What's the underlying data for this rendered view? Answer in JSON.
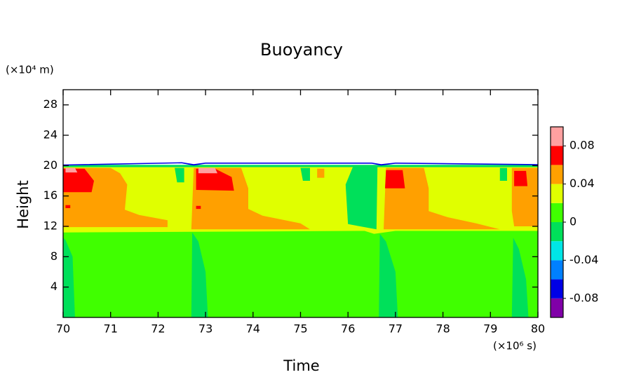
{
  "chart_data": {
    "type": "contour",
    "title": "Buoyancy",
    "x_label": "Time",
    "y_label": "Height",
    "x_unit": "(×10⁶ s)",
    "y_unit": "(×10⁴ m)",
    "xlim": [
      70,
      80
    ],
    "ylim": [
      0,
      30
    ],
    "xticks": [
      70,
      71,
      72,
      73,
      74,
      75,
      76,
      77,
      78,
      79,
      80
    ],
    "yticks": [
      4,
      8,
      12,
      16,
      20,
      24,
      28
    ],
    "levels": [
      -0.1,
      -0.08,
      -0.06,
      -0.04,
      -0.02,
      0,
      0.02,
      0.04,
      0.06,
      0.08,
      0.1
    ],
    "colors": [
      "#8000a8",
      "#0000e6",
      "#0080ff",
      "#00e6e6",
      "#00e05a",
      "#40ff00",
      "#e0ff00",
      "#ffa000",
      "#ff0000",
      "#ffa0a0"
    ],
    "cticks": [
      -0.08,
      -0.04,
      0,
      0.04,
      0.08
    ],
    "regions": [
      {
        "level": 0,
        "x": [
          70,
          80,
          80,
          70
        ],
        "y": [
          0,
          0,
          20,
          20
        ]
      },
      {
        "level": -0.02,
        "x": [
          70,
          70.25,
          70.2,
          70.05,
          70
        ],
        "y": [
          0,
          0,
          8,
          10.2,
          10.5
        ]
      },
      {
        "level": -0.02,
        "x": [
          72.7,
          73.05,
          73.0,
          72.85,
          72.72
        ],
        "y": [
          0,
          0,
          6,
          10,
          11.2
        ]
      },
      {
        "level": -0.02,
        "x": [
          76.65,
          77.05,
          77.0,
          76.8,
          76.67
        ],
        "y": [
          0,
          0,
          6,
          10,
          11.0
        ]
      },
      {
        "level": -0.02,
        "x": [
          79.45,
          79.8,
          79.75,
          79.6,
          79.48
        ],
        "y": [
          0,
          0,
          5,
          9,
          10.5
        ]
      },
      {
        "level": -0.02,
        "x": [
          70,
          80,
          80,
          70
        ],
        "y": [
          19.6,
          19.6,
          20.1,
          20.1
        ]
      },
      {
        "level": -0.08,
        "x": [
          70,
          72.5,
          72.75,
          73.0,
          76.5,
          76.7,
          77.0,
          80,
          80,
          77.0,
          76.7,
          76.5,
          73.0,
          72.75,
          72.5,
          70
        ],
        "y": [
          20.0,
          20.3,
          20.0,
          20.25,
          20.25,
          20.0,
          20.25,
          20.05,
          20.2,
          20.4,
          20.2,
          20.4,
          20.4,
          20.2,
          20.45,
          20.15
        ]
      },
      {
        "level": 0.02,
        "x": [
          70,
          76.35,
          76.55,
          77.0,
          80,
          80,
          70
        ],
        "y": [
          11.2,
          11.4,
          11.0,
          11.4,
          11.4,
          19.8,
          19.8
        ]
      },
      {
        "level": -0.02,
        "x": [
          76.0,
          76.6,
          76.62,
          76.1,
          75.95
        ],
        "y": [
          12.3,
          11.6,
          19.8,
          19.8,
          17.5
        ]
      },
      {
        "level": -0.02,
        "x": [
          72.4,
          72.55,
          72.55,
          72.35
        ],
        "y": [
          17.8,
          17.8,
          19.7,
          19.7
        ]
      },
      {
        "level": -0.02,
        "x": [
          75.05,
          75.2,
          75.2,
          75.0
        ],
        "y": [
          18.0,
          18.0,
          19.7,
          19.7
        ]
      },
      {
        "level": -0.02,
        "x": [
          79.2,
          79.35,
          79.35,
          79.2
        ],
        "y": [
          18.0,
          18.0,
          19.7,
          19.7
        ]
      },
      {
        "level": 0.04,
        "x": [
          70,
          72.2,
          72.2,
          71.6,
          71.3,
          71.35,
          71.2,
          71.0,
          70
        ],
        "y": [
          11.9,
          11.9,
          12.8,
          13.5,
          14.2,
          17.5,
          19.0,
          19.7,
          19.7
        ]
      },
      {
        "level": 0.04,
        "x": [
          72.7,
          75.2,
          75.0,
          74.2,
          73.9,
          73.9,
          73.75,
          72.75
        ],
        "y": [
          11.6,
          11.6,
          12.4,
          13.4,
          14.3,
          17.0,
          19.7,
          19.7
        ]
      },
      {
        "level": 0.04,
        "x": [
          76.75,
          79.2,
          78.7,
          78.1,
          77.7,
          77.7,
          77.6,
          76.8
        ],
        "y": [
          11.6,
          11.6,
          12.4,
          13.2,
          14.0,
          17.0,
          19.7,
          19.7
        ]
      },
      {
        "level": 0.04,
        "x": [
          79.5,
          80,
          80,
          79.45,
          79.45
        ],
        "y": [
          12.0,
          12.0,
          19.7,
          19.7,
          14.0
        ]
      },
      {
        "level": 0.04,
        "x": [
          75.35,
          75.5,
          75.5,
          75.35
        ],
        "y": [
          18.4,
          18.4,
          19.6,
          19.6
        ]
      },
      {
        "level": 0.06,
        "x": [
          70,
          70.6,
          70.65,
          70.45,
          70
        ],
        "y": [
          16.5,
          16.5,
          18.0,
          19.6,
          19.6
        ]
      },
      {
        "level": 0.06,
        "x": [
          70.05,
          70.15,
          70.15,
          70.05
        ],
        "y": [
          14.4,
          14.4,
          14.8,
          14.8
        ]
      },
      {
        "level": 0.06,
        "x": [
          72.8,
          73.6,
          73.55,
          73.2,
          72.8
        ],
        "y": [
          16.8,
          16.7,
          18.5,
          19.6,
          19.6
        ]
      },
      {
        "level": 0.06,
        "x": [
          72.8,
          72.9,
          72.9,
          72.8
        ],
        "y": [
          14.3,
          14.3,
          14.7,
          14.7
        ]
      },
      {
        "level": 0.06,
        "x": [
          76.78,
          77.2,
          77.15,
          76.8
        ],
        "y": [
          17.0,
          17.0,
          19.4,
          19.4
        ]
      },
      {
        "level": 0.06,
        "x": [
          79.5,
          79.78,
          79.75,
          79.5
        ],
        "y": [
          17.3,
          17.3,
          19.3,
          19.3
        ]
      },
      {
        "level": 0.08,
        "x": [
          70.05,
          70.3,
          70.25,
          70.05
        ],
        "y": [
          19.1,
          19.1,
          19.7,
          19.7
        ]
      },
      {
        "level": 0.08,
        "x": [
          72.85,
          73.25,
          73.2,
          72.85
        ],
        "y": [
          19.0,
          19.0,
          19.7,
          19.7
        ]
      }
    ]
  }
}
